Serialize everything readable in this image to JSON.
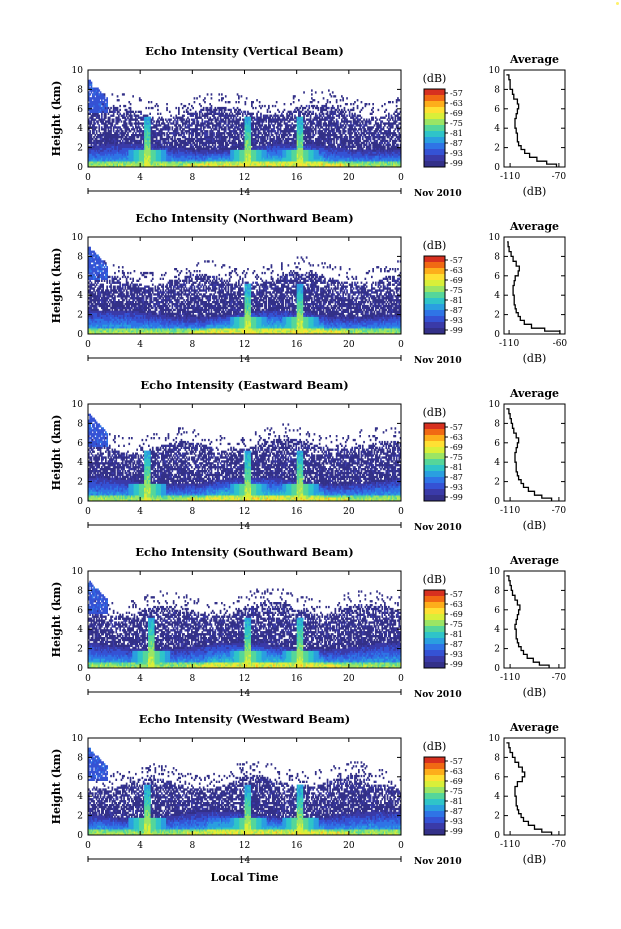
{
  "page": {
    "x_axis_title": "Local Time",
    "date_prefix": "14",
    "date_suffix": "Nov 2010"
  },
  "colorbar": {
    "unit": "(dB)",
    "ticks": [
      "-57",
      "-63",
      "-69",
      "-75",
      "-81",
      "-87",
      "-93",
      "-99"
    ],
    "colors": [
      "#d7301f",
      "#f16913",
      "#fdae1b",
      "#ffe033",
      "#d9ef39",
      "#9be564",
      "#55d69a",
      "#2fc4c9",
      "#2a9fe0",
      "#2f74e6",
      "#3552d4",
      "#3a3aa8",
      "#333088"
    ]
  },
  "chart_data": [
    {
      "type": "heatmap",
      "title": "Echo Intensity (Vertical Beam)",
      "ylabel": "Height (km)",
      "xlim": [
        0,
        24
      ],
      "ylim": [
        0,
        10
      ],
      "x_ticks": [
        "0",
        "4",
        "8",
        "12",
        "16",
        "20",
        "0"
      ],
      "y_ticks": [
        "0",
        "2",
        "4",
        "6",
        "8",
        "10"
      ],
      "features": {
        "lowlevel_top_km": 2,
        "cloud_top_km": 5.5,
        "spikes_h": [
          4.5,
          12.2,
          16.2
        ]
      },
      "average_profile": {
        "title": "Average",
        "xlabel": "(dB)",
        "xlim": [
          -115,
          -65
        ],
        "x_ticks": [
          "-110",
          "-70"
        ],
        "y_ticks": [
          "0",
          "2",
          "4",
          "6",
          "8",
          "10"
        ],
        "heights_km": [
          0,
          0.3,
          0.6,
          1,
          1.4,
          1.8,
          2.2,
          2.6,
          3,
          3.5,
          4,
          4.5,
          5,
          5.5,
          6,
          6.5,
          7,
          7.5,
          8,
          8.5,
          9,
          9.5
        ],
        "values_db": [
          -72,
          -80,
          -88,
          -94,
          -98,
          -101,
          -103,
          -104,
          -104,
          -105,
          -106,
          -106,
          -105,
          -104,
          -103,
          -104,
          -107,
          -108,
          -110,
          -110,
          -111,
          -113
        ]
      }
    },
    {
      "type": "heatmap",
      "title": "Echo Intensity (Northward Beam)",
      "ylabel": "Height (km)",
      "xlim": [
        0,
        24
      ],
      "ylim": [
        0,
        10
      ],
      "x_ticks": [
        "0",
        "4",
        "8",
        "12",
        "16",
        "20",
        "0"
      ],
      "y_ticks": [
        "0",
        "2",
        "4",
        "6",
        "8",
        "10"
      ],
      "features": {
        "lowlevel_top_km": 2,
        "cloud_top_km": 5.5,
        "spikes_h": [
          12.2,
          16.2
        ]
      },
      "average_profile": {
        "title": "Average",
        "xlabel": "(dB)",
        "xlim": [
          -115,
          -55
        ],
        "x_ticks": [
          "-110",
          "-60"
        ],
        "y_ticks": [
          "0",
          "2",
          "4",
          "6",
          "8",
          "10"
        ],
        "heights_km": [
          0,
          0.3,
          0.6,
          1,
          1.4,
          1.8,
          2.2,
          2.6,
          3,
          3.5,
          4,
          4.5,
          5,
          5.5,
          6,
          6.5,
          7,
          7.5,
          8,
          8.5,
          9,
          9.5
        ],
        "values_db": [
          -60,
          -75,
          -88,
          -95,
          -99,
          -101,
          -103,
          -104,
          -105,
          -105,
          -106,
          -106,
          -105,
          -104,
          -101,
          -100,
          -103,
          -106,
          -108,
          -110,
          -111,
          -112
        ]
      }
    },
    {
      "type": "heatmap",
      "title": "Echo Intensity (Eastward Beam)",
      "ylabel": "Height (km)",
      "xlim": [
        0,
        24
      ],
      "ylim": [
        0,
        10
      ],
      "x_ticks": [
        "0",
        "4",
        "8",
        "12",
        "16",
        "20",
        "0"
      ],
      "y_ticks": [
        "0",
        "2",
        "4",
        "6",
        "8",
        "10"
      ],
      "features": {
        "lowlevel_top_km": 2,
        "cloud_top_km": 5.5,
        "spikes_h": [
          4.5,
          12.2,
          16.2
        ]
      },
      "average_profile": {
        "title": "Average",
        "xlabel": "(dB)",
        "xlim": [
          -115,
          -65
        ],
        "x_ticks": [
          "-110",
          "-70"
        ],
        "y_ticks": [
          "0",
          "2",
          "4",
          "6",
          "8",
          "10"
        ],
        "heights_km": [
          0,
          0.3,
          0.6,
          1,
          1.4,
          1.8,
          2.2,
          2.6,
          3,
          3.5,
          4,
          4.5,
          5,
          5.5,
          6,
          6.5,
          7,
          7.5,
          8,
          8.5,
          9,
          9.5
        ],
        "values_db": [
          -76,
          -84,
          -90,
          -95,
          -99,
          -101,
          -103,
          -104,
          -105,
          -105,
          -106,
          -106,
          -105,
          -104,
          -103,
          -105,
          -107,
          -108,
          -109,
          -110,
          -111,
          -113
        ]
      }
    },
    {
      "type": "heatmap",
      "title": "Echo Intensity (Southward Beam)",
      "ylabel": "Height (km)",
      "xlim": [
        0,
        24
      ],
      "ylim": [
        0,
        10
      ],
      "x_ticks": [
        "0",
        "4",
        "8",
        "12",
        "16",
        "20",
        "0"
      ],
      "y_ticks": [
        "0",
        "2",
        "4",
        "6",
        "8",
        "10"
      ],
      "features": {
        "lowlevel_top_km": 2.2,
        "cloud_top_km": 5.8,
        "spikes_h": [
          4.8,
          12.2,
          16.2
        ]
      },
      "average_profile": {
        "title": "Average",
        "xlabel": "(dB)",
        "xlim": [
          -115,
          -65
        ],
        "x_ticks": [
          "-110",
          "-70"
        ],
        "y_ticks": [
          "0",
          "2",
          "4",
          "6",
          "8",
          "10"
        ],
        "heights_km": [
          0,
          0.3,
          0.6,
          1,
          1.4,
          1.8,
          2.2,
          2.6,
          3,
          3.5,
          4,
          4.5,
          5,
          5.5,
          6,
          6.5,
          7,
          7.5,
          8,
          8.5,
          9,
          9.5
        ],
        "values_db": [
          -78,
          -86,
          -91,
          -96,
          -99,
          -101,
          -103,
          -104,
          -105,
          -105,
          -106,
          -105,
          -104,
          -103,
          -102,
          -104,
          -106,
          -108,
          -109,
          -110,
          -111,
          -113
        ]
      }
    },
    {
      "type": "heatmap",
      "title": "Echo Intensity (Westward Beam)",
      "ylabel": "Height (km)",
      "xlim": [
        0,
        24
      ],
      "ylim": [
        0,
        10
      ],
      "x_ticks": [
        "0",
        "4",
        "8",
        "12",
        "16",
        "20",
        "0"
      ],
      "y_ticks": [
        "0",
        "2",
        "4",
        "6",
        "8",
        "10"
      ],
      "features": {
        "lowlevel_top_km": 2,
        "cloud_top_km": 5.2,
        "spikes_h": [
          4.5,
          12.2,
          16.2
        ]
      },
      "average_profile": {
        "title": "Average",
        "xlabel": "(dB)",
        "xlim": [
          -115,
          -65
        ],
        "x_ticks": [
          "-110",
          "-70"
        ],
        "y_ticks": [
          "0",
          "2",
          "4",
          "6",
          "8",
          "10"
        ],
        "heights_km": [
          0,
          0.3,
          0.6,
          1,
          1.4,
          1.8,
          2.2,
          2.6,
          3,
          3.5,
          4,
          4.5,
          5,
          5.5,
          6,
          6.5,
          7,
          7.5,
          8,
          8.5,
          9,
          9.5
        ],
        "values_db": [
          -76,
          -84,
          -90,
          -95,
          -99,
          -101,
          -103,
          -104,
          -105,
          -105,
          -106,
          -106,
          -104,
          -100,
          -98,
          -100,
          -103,
          -106,
          -108,
          -110,
          -111,
          -113
        ]
      }
    }
  ]
}
